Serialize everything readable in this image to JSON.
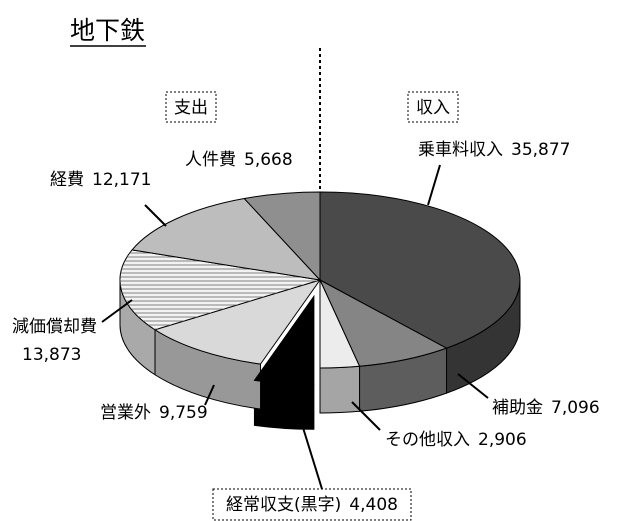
{
  "chart_data": {
    "type": "pie",
    "title": "地下鉄",
    "groups": [
      {
        "name": "収入",
        "categories": [
          "乗車料収入",
          "補助金",
          "その他収入"
        ],
        "values": [
          35877,
          7096,
          2906
        ],
        "value_labels": [
          "35,877",
          "7,096",
          "2,906"
        ],
        "colors": [
          "#4a4a4a",
          "#858585",
          "#ececec"
        ]
      },
      {
        "name": "支出",
        "categories": [
          "経常収支(黒字)",
          "営業外",
          "減価償却費",
          "経費",
          "人件費"
        ],
        "values": [
          4408,
          9759,
          13873,
          12171,
          5668
        ],
        "value_labels": [
          "4,408",
          "9,759",
          "13,873",
          "12,171",
          "5,668"
        ],
        "colors": [
          "#000000",
          "#d9d9d9",
          "#f2f2f2",
          "#bdbdbd",
          "#8f8f8f"
        ]
      }
    ]
  }
}
